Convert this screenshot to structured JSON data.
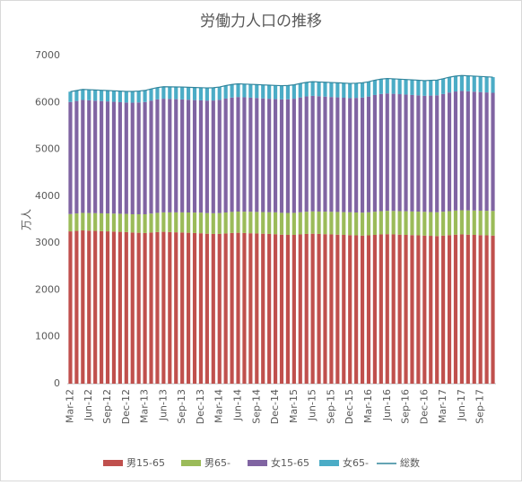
{
  "chart_data": {
    "type": "bar",
    "stacked": true,
    "title": "労働力人口の推移",
    "y_label": "万人",
    "categories": [
      "Mar-12",
      null,
      null,
      "Jun-12",
      null,
      null,
      "Sep-12",
      null,
      null,
      "Dec-12",
      null,
      null,
      "Mar-13",
      null,
      null,
      "Jun-13",
      null,
      null,
      "Sep-13",
      null,
      null,
      "Dec-13",
      null,
      null,
      "Mar-14",
      null,
      null,
      "Jun-14",
      null,
      null,
      "Sep-14",
      null,
      null,
      "Dec-14",
      null,
      null,
      "Mar-15",
      null,
      null,
      "Jun-15",
      null,
      null,
      "Sep-15",
      null,
      null,
      "Dec-15",
      null,
      null,
      "Mar-16",
      null,
      null,
      "Jun-16",
      null,
      null,
      "Sep-16",
      null,
      null,
      "Dec-16",
      null,
      null,
      "Mar-17",
      null,
      null,
      "Jun-17",
      null,
      null,
      "Sep-17",
      null,
      null
    ],
    "series": [
      {
        "name": "男15-65",
        "color": "#c0504d",
        "values": [
          3250,
          3260,
          3270,
          3265,
          3260,
          3255,
          3250,
          3245,
          3240,
          3235,
          3225,
          3220,
          3215,
          3225,
          3235,
          3240,
          3235,
          3230,
          3225,
          3220,
          3215,
          3210,
          3200,
          3195,
          3195,
          3205,
          3215,
          3220,
          3215,
          3210,
          3205,
          3200,
          3195,
          3190,
          3180,
          3175,
          3175,
          3185,
          3195,
          3200,
          3195,
          3190,
          3185,
          3180,
          3175,
          3170,
          3165,
          3160,
          3165,
          3175,
          3185,
          3190,
          3185,
          3180,
          3175,
          3170,
          3165,
          3160,
          3155,
          3150,
          3160,
          3170,
          3180,
          3185,
          3180,
          3175,
          3170,
          3165,
          3160
        ]
      },
      {
        "name": "男65-",
        "color": "#9bbb59",
        "values": [
          370,
          372,
          374,
          376,
          378,
          380,
          382,
          384,
          386,
          388,
          390,
          395,
          400,
          405,
          410,
          415,
          420,
          425,
          430,
          433,
          436,
          440,
          440,
          442,
          445,
          448,
          450,
          452,
          455,
          458,
          460,
          462,
          464,
          466,
          466,
          468,
          470,
          472,
          474,
          476,
          478,
          480,
          482,
          484,
          486,
          488,
          488,
          490,
          492,
          494,
          496,
          498,
          500,
          502,
          504,
          505,
          506,
          507,
          507,
          508,
          510,
          512,
          514,
          516,
          518,
          520,
          522,
          524,
          526
        ]
      },
      {
        "name": "女15-65",
        "color": "#8064a2",
        "values": [
          2390,
          2400,
          2410,
          2405,
          2400,
          2395,
          2390,
          2385,
          2380,
          2375,
          2380,
          2385,
          2395,
          2410,
          2420,
          2425,
          2420,
          2415,
          2410,
          2405,
          2400,
          2395,
          2400,
          2405,
          2415,
          2430,
          2440,
          2445,
          2440,
          2435,
          2430,
          2425,
          2420,
          2415,
          2420,
          2425,
          2435,
          2450,
          2460,
          2465,
          2460,
          2455,
          2450,
          2445,
          2440,
          2435,
          2445,
          2455,
          2470,
          2490,
          2500,
          2505,
          2500,
          2495,
          2490,
          2485,
          2480,
          2475,
          2485,
          2495,
          2510,
          2530,
          2540,
          2545,
          2540,
          2535,
          2530,
          2525,
          2520
        ]
      },
      {
        "name": "女65-",
        "color": "#4bacc6",
        "values": [
          220,
          222,
          224,
          226,
          228,
          230,
          232,
          234,
          236,
          238,
          240,
          243,
          246,
          249,
          252,
          255,
          258,
          261,
          264,
          266,
          268,
          270,
          270,
          272,
          274,
          276,
          278,
          280,
          282,
          284,
          286,
          288,
          290,
          292,
          292,
          294,
          296,
          298,
          300,
          302,
          304,
          306,
          308,
          310,
          312,
          313,
          313,
          314,
          315,
          316,
          317,
          318,
          319,
          320,
          321,
          322,
          323,
          324,
          324,
          325,
          326,
          327,
          328,
          329,
          330,
          331,
          332,
          333,
          334
        ]
      },
      {
        "name": "総数",
        "type": "line",
        "color": "#31859c",
        "values": [
          6230,
          6254,
          6278,
          6272,
          6266,
          6260,
          6254,
          6248,
          6242,
          6236,
          6235,
          6243,
          6256,
          6289,
          6317,
          6335,
          6333,
          6331,
          6329,
          6324,
          6319,
          6315,
          6310,
          6314,
          6329,
          6359,
          6383,
          6397,
          6392,
          6387,
          6381,
          6375,
          6369,
          6363,
          6358,
          6362,
          6376,
          6405,
          6429,
          6443,
          6437,
          6431,
          6425,
          6419,
          6413,
          6406,
          6411,
          6419,
          6442,
          6475,
          6498,
          6511,
          6504,
          6497,
          6490,
          6482,
          6474,
          6466,
          6471,
          6478,
          6506,
          6539,
          6562,
          6575,
          6568,
          6561,
          6554,
          6547,
          6540
        ]
      }
    ],
    "ylim": [
      0,
      7000
    ],
    "yticks": [
      0,
      1000,
      2000,
      3000,
      4000,
      5000,
      6000,
      7000
    ],
    "grid": false,
    "legend": "bottom"
  }
}
